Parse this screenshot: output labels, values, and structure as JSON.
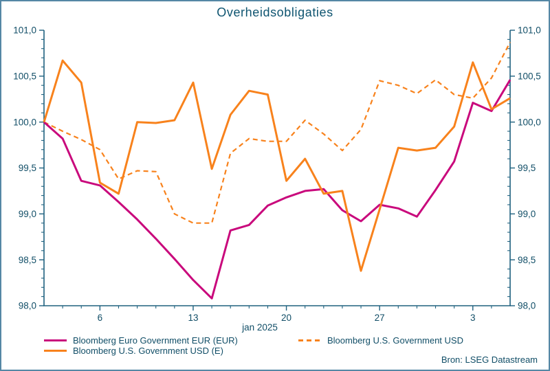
{
  "title": "Overheidsobligaties",
  "source": "Bron: LSEG Datastream",
  "colors": {
    "magenta": "#C9097C",
    "orange": "#F8821C",
    "text": "#114E67",
    "title_text": "#0E5470",
    "axis": "#1E617F",
    "page_border": "#5587A5",
    "background": "#FFFFFF"
  },
  "chart_data": {
    "type": "line",
    "title": "Overheidsobligaties",
    "xlabel": "jan 2025",
    "ylabel": "",
    "ylim": [
      98.0,
      101.0
    ],
    "y_minor_step": 0.1,
    "grid": false,
    "x_dates": [
      "1 jan",
      "2 jan",
      "3 jan",
      "6 jan",
      "7 jan",
      "8 jan",
      "9 jan",
      "10 jan",
      "13 jan",
      "14 jan",
      "15 jan",
      "16 jan",
      "17 jan",
      "20 jan",
      "21 jan",
      "22 jan",
      "23 jan",
      "24 jan",
      "27 jan",
      "28 jan",
      "29 jan",
      "30 jan",
      "31 jan",
      "3 feb",
      "4 feb",
      "5 feb"
    ],
    "yticks": [
      {
        "v": 98.0,
        "label": "98,0"
      },
      {
        "v": 98.5,
        "label": "98,5"
      },
      {
        "v": 99.0,
        "label": "99,0"
      },
      {
        "v": 99.5,
        "label": "99,5"
      },
      {
        "v": 100.0,
        "label": "100,0"
      },
      {
        "v": 100.5,
        "label": "100,5"
      },
      {
        "v": 101.0,
        "label": "101,0"
      }
    ],
    "xticks_major": [
      {
        "i": 3,
        "label": "6"
      },
      {
        "i": 8,
        "label": "13"
      },
      {
        "i": 13,
        "label": "20"
      },
      {
        "i": 18,
        "label": "27"
      },
      {
        "i": 23,
        "label": "3"
      }
    ],
    "series": [
      {
        "name": "Bloomberg Euro Government EUR (EUR)",
        "color": "#C9097C",
        "dashed": false,
        "values": [
          100.0,
          99.82,
          99.36,
          99.31,
          99.13,
          98.94,
          98.73,
          98.51,
          98.28,
          98.08,
          98.82,
          98.88,
          99.09,
          99.18,
          99.25,
          99.27,
          99.04,
          98.92,
          99.1,
          99.06,
          98.97,
          99.26,
          99.57,
          100.21,
          100.12,
          100.46
        ]
      },
      {
        "name": "Bloomberg U.S. Government USD (E)",
        "color": "#F8821C",
        "dashed": false,
        "values": [
          100.0,
          100.67,
          100.43,
          99.34,
          99.22,
          100.0,
          99.99,
          100.02,
          100.43,
          99.49,
          100.08,
          100.34,
          100.3,
          99.36,
          99.6,
          99.22,
          99.25,
          98.38,
          99.05,
          99.72,
          99.69,
          99.72,
          99.95,
          100.65,
          100.14,
          100.26
        ]
      },
      {
        "name": "Bloomberg U.S. Government USD",
        "color": "#F8821C",
        "dashed": true,
        "values": [
          100.0,
          99.9,
          99.81,
          99.7,
          99.38,
          99.47,
          99.46,
          99.0,
          98.9,
          98.9,
          99.66,
          99.82,
          99.79,
          99.79,
          100.02,
          99.87,
          99.69,
          99.92,
          100.45,
          100.4,
          100.31,
          100.46,
          100.3,
          100.26,
          100.48,
          100.87
        ]
      }
    ],
    "legend_position": "bottom",
    "draw_order": [
      2,
      0,
      1
    ]
  },
  "legend": {
    "items": [
      {
        "label": "Bloomberg Euro Government EUR (EUR)",
        "series": 0
      },
      {
        "label": "Bloomberg U.S. Government USD (E)",
        "series": 1
      },
      {
        "label": "Bloomberg U.S. Government USD",
        "series": 2
      }
    ]
  }
}
